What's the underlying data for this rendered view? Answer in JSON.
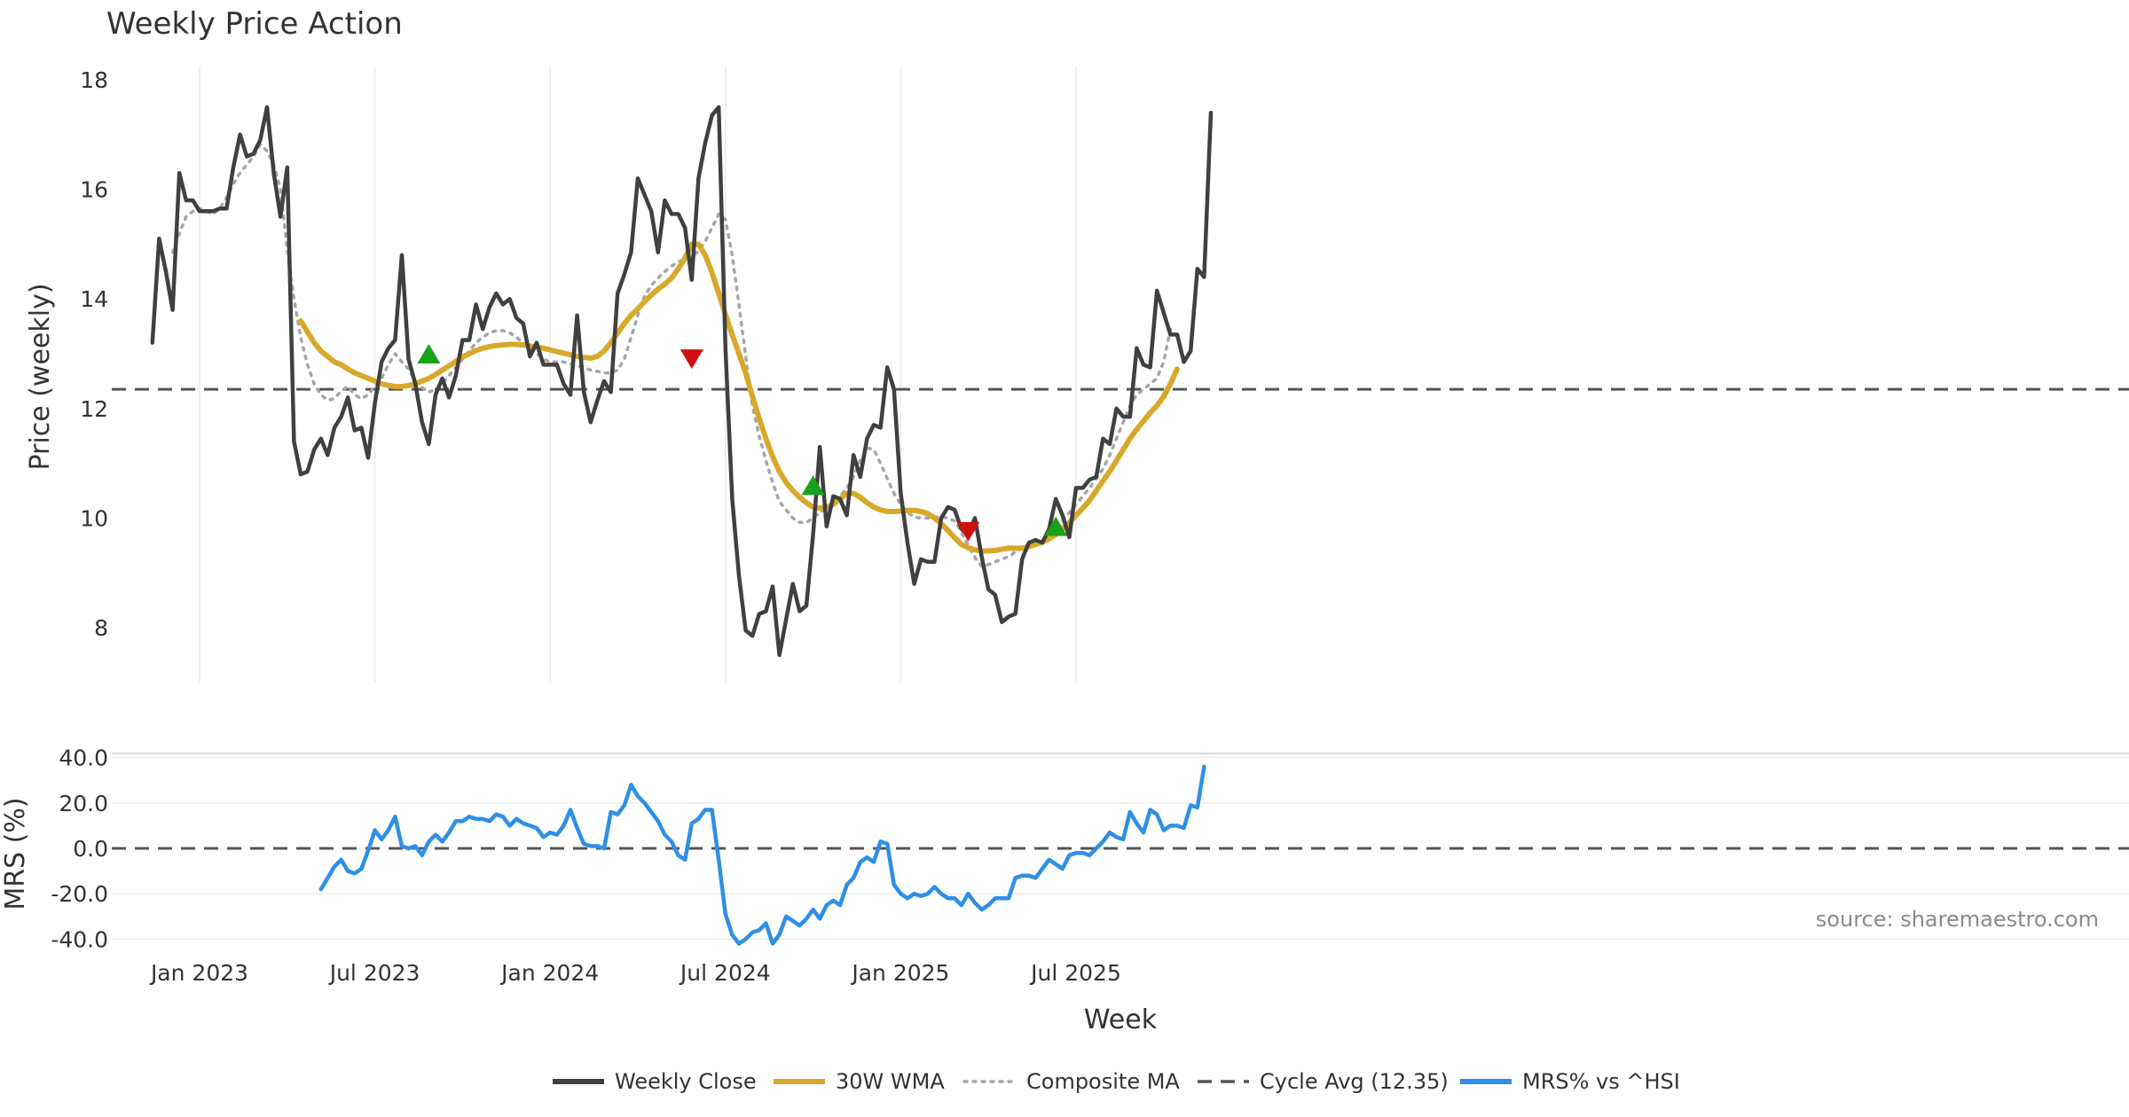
{
  "chart_data": {
    "type": "line",
    "title": "Weekly Price Action",
    "xlabel": "Week",
    "x_ticks": [
      "Jan 2023",
      "Jul 2023",
      "Jan 2024",
      "Jul 2024",
      "Jan 2025",
      "Jul 2025"
    ],
    "x_tick_weeks": [
      7,
      33,
      59,
      85,
      111,
      137
    ],
    "price_panel": {
      "ylabel": "Price (weekly)",
      "ylim": [
        7.0,
        18.3
      ],
      "y_ticks": [
        "18",
        "16",
        "14",
        "12",
        "10",
        "8"
      ],
      "y_tick_values": [
        18,
        16,
        14,
        12,
        10,
        8
      ]
    },
    "mrs_panel": {
      "ylabel": "MRS (%)",
      "ylim": [
        -41.0,
        43.0
      ],
      "y_ticks": [
        "40.0",
        "20.0",
        "0.0",
        "-20.0",
        "-40.0"
      ],
      "y_tick_values": [
        40,
        20,
        0,
        -20,
        -40
      ]
    },
    "series": [
      {
        "name": "Weekly Close",
        "color": "#404040",
        "panel": "price",
        "start_week": 0,
        "values": [
          13.2,
          15.1,
          14.5,
          13.8,
          16.3,
          15.8,
          15.8,
          15.6,
          15.6,
          15.6,
          15.65,
          15.65,
          16.4,
          17.0,
          16.6,
          16.65,
          16.9,
          17.5,
          16.3,
          15.5,
          16.4,
          11.4,
          10.8,
          10.85,
          11.25,
          11.45,
          11.15,
          11.65,
          11.85,
          12.2,
          11.6,
          11.65,
          11.1,
          12.1,
          12.85,
          13.1,
          13.25,
          14.8,
          12.9,
          12.45,
          11.75,
          11.35,
          12.25,
          12.55,
          12.2,
          12.6,
          13.25,
          13.25,
          13.9,
          13.45,
          13.85,
          14.1,
          13.9,
          14.0,
          13.65,
          13.55,
          12.95,
          13.2,
          12.8,
          12.8,
          12.8,
          12.45,
          12.25,
          13.7,
          12.3,
          11.75,
          12.15,
          12.5,
          12.3,
          14.1,
          14.45,
          14.85,
          16.2,
          15.9,
          15.6,
          14.85,
          15.8,
          15.55,
          15.55,
          15.3,
          14.35,
          16.2,
          16.85,
          17.35,
          17.5,
          13.1,
          10.35,
          8.95,
          7.95,
          7.85,
          8.25,
          8.3,
          8.75,
          7.5,
          8.15,
          8.8,
          8.3,
          8.4,
          9.7,
          11.3,
          9.85,
          10.4,
          10.35,
          10.05,
          11.15,
          10.75,
          11.45,
          11.7,
          11.65,
          12.75,
          12.35,
          10.45,
          9.55,
          8.8,
          9.25,
          9.2,
          9.2,
          10.0,
          10.2,
          10.15,
          9.8,
          9.7,
          10.0,
          9.3,
          8.7,
          8.6,
          8.1,
          8.2,
          8.25,
          9.25,
          9.55,
          9.6,
          9.55,
          9.8,
          10.35,
          10.05,
          9.65,
          10.55,
          10.55,
          10.7,
          10.75,
          11.45,
          11.35,
          12.0,
          11.85,
          11.85,
          13.1,
          12.8,
          12.75,
          14.15,
          13.75,
          13.35,
          13.35,
          12.85,
          13.05,
          14.55,
          14.4,
          17.4
        ]
      },
      {
        "name": "30W WMA",
        "color": "#d9a82a",
        "panel": "price",
        "start_week": 22,
        "values": [
          13.6,
          13.4,
          13.2,
          13.05,
          12.95,
          12.85,
          12.8,
          12.72,
          12.65,
          12.6,
          12.55,
          12.5,
          12.45,
          12.42,
          12.4,
          12.4,
          12.42,
          12.45,
          12.5,
          12.55,
          12.62,
          12.7,
          12.78,
          12.86,
          12.94,
          13.0,
          13.06,
          13.1,
          13.13,
          13.15,
          13.16,
          13.17,
          13.17,
          13.16,
          13.14,
          13.12,
          13.1,
          13.07,
          13.04,
          13.01,
          12.98,
          12.95,
          12.93,
          12.92,
          12.95,
          13.05,
          13.2,
          13.38,
          13.55,
          13.7,
          13.82,
          13.95,
          14.07,
          14.18,
          14.27,
          14.38,
          14.55,
          14.75,
          15.0,
          15.0,
          14.8,
          14.48,
          14.1,
          13.72,
          13.35,
          13.0,
          12.65,
          12.22,
          11.82,
          11.45,
          11.12,
          10.85,
          10.65,
          10.5,
          10.38,
          10.28,
          10.2,
          10.18,
          10.2,
          10.25,
          10.35,
          10.45,
          10.45,
          10.38,
          10.28,
          10.2,
          10.15,
          10.12,
          10.12,
          10.13,
          10.14,
          10.14,
          10.12,
          10.08,
          10.0,
          9.9,
          9.77,
          9.64,
          9.52,
          9.46,
          9.42,
          9.4,
          9.4,
          9.41,
          9.43,
          9.45,
          9.45,
          9.45,
          9.48,
          9.52,
          9.56,
          9.62,
          9.7,
          9.8,
          9.92,
          10.05,
          10.18,
          10.32,
          10.5,
          10.68,
          10.85,
          11.05,
          11.25,
          11.45,
          11.62,
          11.77,
          11.92,
          12.05,
          12.22,
          12.45,
          12.72
        ]
      },
      {
        "name": "Composite MA",
        "color": "#a6a6a6",
        "panel": "price",
        "start_week": 3,
        "values": [
          14.85,
          15.2,
          15.5,
          15.6,
          15.65,
          15.6,
          15.55,
          15.65,
          15.85,
          16.1,
          16.3,
          16.45,
          16.6,
          16.82,
          16.7,
          16.45,
          16.0,
          14.9,
          14.0,
          13.3,
          12.8,
          12.45,
          12.25,
          12.15,
          12.18,
          12.32,
          12.4,
          12.25,
          12.18,
          12.25,
          12.4,
          12.55,
          12.8,
          13.0,
          12.85,
          12.72,
          12.5,
          12.38,
          12.3,
          12.35,
          12.45,
          12.6,
          12.75,
          12.9,
          13.05,
          13.2,
          13.3,
          13.38,
          13.42,
          13.42,
          13.38,
          13.3,
          13.2,
          13.1,
          13.0,
          12.9,
          12.85,
          12.85,
          12.85,
          12.82,
          12.78,
          12.75,
          12.7,
          12.68,
          12.65,
          12.65,
          12.7,
          12.9,
          13.3,
          13.7,
          14.05,
          14.25,
          14.38,
          14.5,
          14.6,
          14.68,
          14.72,
          14.75,
          14.88,
          15.05,
          15.3,
          15.55,
          15.45,
          14.8,
          13.9,
          12.95,
          12.05,
          11.5,
          11.05,
          10.65,
          10.3,
          10.15,
          10.0,
          9.92,
          9.92,
          10.0,
          10.1,
          10.18,
          10.28,
          10.4,
          10.55,
          10.75,
          11.05,
          11.28,
          11.25,
          11.0,
          10.72,
          10.45,
          10.25,
          10.1,
          10.02,
          10.0,
          10.0,
          10.02,
          10.02,
          10.0,
          9.95,
          9.75,
          9.5,
          9.28,
          9.12,
          9.15,
          9.2,
          9.25,
          9.3,
          9.38,
          9.45,
          9.5,
          9.55,
          9.6,
          9.7,
          9.8,
          9.95,
          10.1,
          10.25,
          10.4,
          10.55,
          10.72,
          10.9,
          11.15,
          11.45,
          11.75,
          12.05,
          12.25,
          12.35,
          12.45,
          12.55,
          12.85,
          13.45
        ]
      },
      {
        "name": "Cycle Avg (12.35)",
        "color": "#555555",
        "panel": "price",
        "constant": 12.35
      },
      {
        "name": "MRS% vs ^HSI",
        "color": "#2e8fe6",
        "panel": "mrs",
        "start_week": 25,
        "values": [
          -18.0,
          -13.0,
          -8.0,
          -5.0,
          -10.0,
          -11.0,
          -9.0,
          -1.0,
          8.0,
          4.0,
          8.0,
          14.0,
          1.0,
          0.0,
          1.0,
          -3.0,
          3.0,
          6.0,
          3.0,
          7.0,
          12.0,
          12.0,
          14.0,
          13.0,
          13.0,
          12.0,
          15.0,
          14.0,
          10.0,
          13.0,
          11.0,
          10.0,
          9.0,
          5.0,
          7.0,
          6.0,
          10.0,
          17.0,
          9.0,
          2.0,
          1.0,
          1.0,
          0.0,
          16.0,
          15.0,
          19.0,
          28.0,
          23.0,
          20.0,
          16.0,
          12.0,
          6.0,
          3.0,
          -3.0,
          -5.0,
          11.0,
          13.0,
          17.0,
          17.0,
          -5.0,
          -29.0,
          -38.0,
          -42.0,
          -40.0,
          -37.0,
          -36.0,
          -33.0,
          -42.0,
          -38.0,
          -30.0,
          -32.0,
          -34.0,
          -31.0,
          -27.0,
          -31.0,
          -25.0,
          -23.0,
          -25.0,
          -16.0,
          -13.0,
          -6.0,
          -4.0,
          -6.0,
          3.0,
          2.0,
          -16.0,
          -20.0,
          -22.0,
          -20.0,
          -21.0,
          -20.0,
          -17.0,
          -20.0,
          -22.0,
          -22.0,
          -25.0,
          -20.0,
          -24.0,
          -27.0,
          -25.0,
          -22.0,
          -22.0,
          -22.0,
          -13.0,
          -12.0,
          -12.0,
          -13.0,
          -9.0,
          -5.0,
          -7.0,
          -9.0,
          -3.0,
          -2.0,
          -2.0,
          -3.0,
          0.0,
          3.0,
          7.0,
          5.0,
          4.0,
          16.0,
          11.0,
          7.0,
          17.0,
          15.0,
          8.0,
          10.0,
          10.0,
          9.0,
          19.0,
          18.0,
          36.0
        ]
      },
      {
        "name": "MRS zero line",
        "color": "#555555",
        "panel": "mrs",
        "constant": 0
      }
    ],
    "markers": [
      {
        "type": "buy",
        "color": "#1aa11a",
        "week": 41,
        "value": 13.0
      },
      {
        "type": "sell",
        "color": "#d01010",
        "week": 80,
        "value": 12.9
      },
      {
        "type": "buy",
        "color": "#1aa11a",
        "week": 98,
        "value": 10.6
      },
      {
        "type": "sell",
        "color": "#d01010",
        "week": 121,
        "value": 9.75
      },
      {
        "type": "buy",
        "color": "#1aa11a",
        "week": 134,
        "value": 9.85
      }
    ],
    "legend": {
      "placement": "bottom-center",
      "entries": [
        {
          "label": "Weekly Close",
          "color": "#404040",
          "style": "solid"
        },
        {
          "label": "30W WMA",
          "color": "#d9a82a",
          "style": "solid"
        },
        {
          "label": "Composite MA",
          "color": "#a6a6a6",
          "style": "dotted"
        },
        {
          "label": "Cycle Avg (12.35)",
          "color": "#555555",
          "style": "dashed"
        },
        {
          "label": "MRS% vs ^HSI",
          "color": "#2e8fe6",
          "style": "solid"
        }
      ]
    },
    "annotations": [
      {
        "text": "source: sharemaestro.com",
        "placement": "bottom-right of MRS panel"
      }
    ],
    "grid": true
  }
}
